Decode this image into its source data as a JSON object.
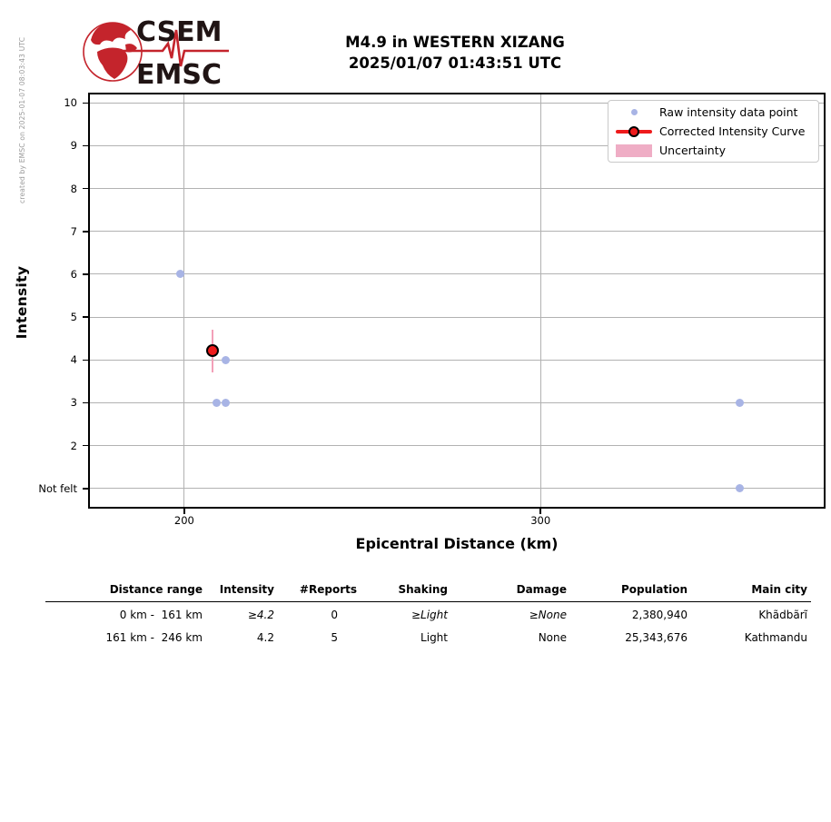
{
  "watermark": "created by EMSC on 2025-01-07 08:03:43 UTC",
  "logo": {
    "line1": "CSEM",
    "line2": "EMSC",
    "brand_red": "#c4242c",
    "brand_dark": "#201414"
  },
  "title": {
    "line1": "M4.9 in WESTERN XIZANG",
    "line2": "2025/01/07 01:43:51 UTC"
  },
  "chart_data": {
    "type": "scatter",
    "xlabel": "Epicentral Distance (km)",
    "ylabel": "Intensity",
    "xlim": [
      173,
      380
    ],
    "ylim": [
      0.53,
      10.24
    ],
    "grid": true,
    "legend_position": "upper right",
    "xticks": [
      {
        "value": 200,
        "label": "200"
      },
      {
        "value": 300,
        "label": "300"
      }
    ],
    "yticks": [
      {
        "value": 1,
        "label": "Not felt"
      },
      {
        "value": 2,
        "label": "2"
      },
      {
        "value": 3,
        "label": "3"
      },
      {
        "value": 4,
        "label": "4"
      },
      {
        "value": 5,
        "label": "5"
      },
      {
        "value": 6,
        "label": "6"
      },
      {
        "value": 7,
        "label": "7"
      },
      {
        "value": 8,
        "label": "8"
      },
      {
        "value": 9,
        "label": "9"
      },
      {
        "value": 10,
        "label": "10"
      }
    ],
    "series": [
      {
        "name": "Raw intensity data point",
        "type": "scatter",
        "color": "#a8b4e5",
        "points": [
          {
            "x": 199,
            "y": 6
          },
          {
            "x": 211.5,
            "y": 4
          },
          {
            "x": 209,
            "y": 3
          },
          {
            "x": 211.5,
            "y": 3
          },
          {
            "x": 356,
            "y": 3
          },
          {
            "x": 356,
            "y": 1
          }
        ]
      },
      {
        "name": "Corrected Intensity Curve",
        "type": "line",
        "color": "#ee1b1c",
        "marker_edge": "#000000",
        "points": [
          {
            "x": 208,
            "y": 4.2,
            "y_low": 3.7,
            "y_high": 4.7
          }
        ]
      },
      {
        "name": "Uncertainty",
        "type": "band",
        "color": "#efadc5",
        "bar_color": "#f3a0b8"
      }
    ]
  },
  "table": {
    "headers": [
      "Distance range",
      "Intensity",
      "#Reports",
      "Shaking",
      "Damage",
      "Population",
      "Main city"
    ],
    "rows": [
      {
        "cells": [
          "0 km -  161 km",
          "≥4.2",
          "0",
          "≥Light",
          "≥None",
          "2,380,940",
          "Khãdbãrĩ"
        ],
        "italic_cols": [
          1,
          3,
          4
        ]
      },
      {
        "cells": [
          "161 km -  246 km",
          "4.2",
          "5",
          "Light",
          "None",
          "25,343,676",
          "Kathmandu"
        ],
        "italic_cols": []
      }
    ]
  }
}
